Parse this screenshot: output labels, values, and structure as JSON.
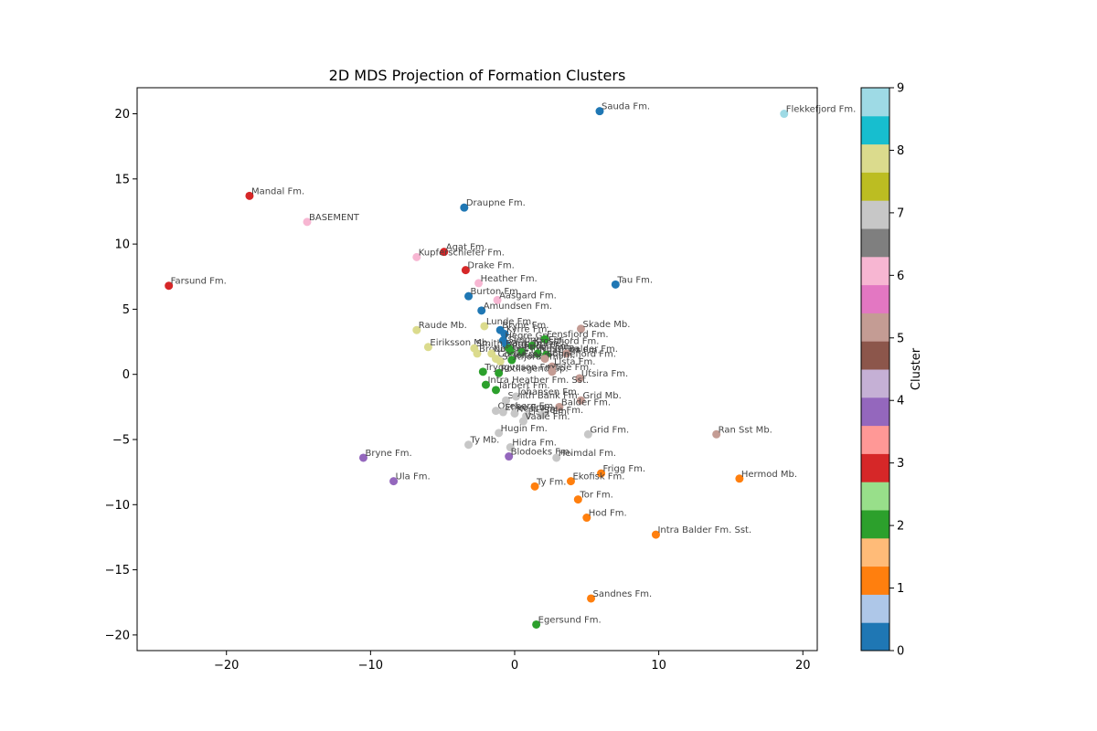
{
  "chart_data": {
    "type": "scatter",
    "title": "2D MDS Projection of Formation Clusters",
    "xlabel": "",
    "ylabel": "",
    "xlim": [
      -26.2,
      21
    ],
    "ylim": [
      -21.2,
      22
    ],
    "xticks": [
      -20,
      -10,
      0,
      10,
      20
    ],
    "yticks": [
      -20,
      -15,
      -10,
      -5,
      0,
      5,
      10,
      15,
      20
    ],
    "grid": false,
    "colorbar": {
      "label": "Cluster",
      "range": [
        0,
        9
      ],
      "ticks": [
        0,
        1,
        2,
        3,
        4,
        5,
        6,
        7,
        8,
        9
      ],
      "colors": [
        "#1f77b4",
        "#aec7e8",
        "#ff7f0e",
        "#ffbb78",
        "#2ca02c",
        "#98df8a",
        "#d62728",
        "#ff9896",
        "#9467bd",
        "#c5b0d5",
        "#8c564b",
        "#c49c94",
        "#e377c2",
        "#f7b6d2",
        "#7f7f7f",
        "#c7c7c7",
        "#bcbd22",
        "#dbdb8d",
        "#17becf",
        "#9edae5"
      ]
    },
    "cluster_colors": {
      "0": "#1f77b4",
      "1": "#ff7f0e",
      "2": "#2ca02c",
      "3": "#d62728",
      "4": "#9467bd",
      "5": "#c49c94",
      "6": "#f7b6d2",
      "7": "#c7c7c7",
      "8": "#dbdb8d",
      "9": "#9edae5"
    },
    "points": [
      {
        "label": "Sauda Fm.",
        "x": 5.9,
        "y": 20.2,
        "cluster": 0
      },
      {
        "label": "Flekkefjord Fm.",
        "x": 18.7,
        "y": 20.0,
        "cluster": 9
      },
      {
        "label": "Mandal Fm.",
        "x": -18.4,
        "y": 13.7,
        "cluster": 3
      },
      {
        "label": "Draupne Fm.",
        "x": -3.5,
        "y": 12.8,
        "cluster": 0
      },
      {
        "label": "BASEMENT",
        "x": -14.4,
        "y": 11.7,
        "cluster": 6
      },
      {
        "label": "Agat Fm.",
        "x": -4.9,
        "y": 9.4,
        "cluster": 3
      },
      {
        "label": "Kupferschiefer Fm.",
        "x": -6.8,
        "y": 9.0,
        "cluster": 6
      },
      {
        "label": "Drake Fm.",
        "x": -3.4,
        "y": 8.0,
        "cluster": 3
      },
      {
        "label": "Heather Fm.",
        "x": -2.5,
        "y": 7.0,
        "cluster": 6
      },
      {
        "label": "Farsund Fm.",
        "x": -24.0,
        "y": 6.8,
        "cluster": 3
      },
      {
        "label": "Tau Fm.",
        "x": 7.0,
        "y": 6.9,
        "cluster": 0
      },
      {
        "label": "Burton Fm.",
        "x": -3.2,
        "y": 6.0,
        "cluster": 0
      },
      {
        "label": "Aasgard Fm.",
        "x": -1.2,
        "y": 5.7,
        "cluster": 6
      },
      {
        "label": "Amundsen Fm.",
        "x": -2.3,
        "y": 4.9,
        "cluster": 0
      },
      {
        "label": "Raude Mb.",
        "x": -6.8,
        "y": 3.4,
        "cluster": 8
      },
      {
        "label": "Lunde Fm.",
        "x": -2.1,
        "y": 3.7,
        "cluster": 8
      },
      {
        "label": "Bryne Fm.",
        "x": -1.0,
        "y": 3.4,
        "cluster": 0
      },
      {
        "label": "Skade Mb.",
        "x": 4.6,
        "y": 3.5,
        "cluster": 5
      },
      {
        "label": "Kyrre Fm.",
        "x": -0.7,
        "y": 3.1,
        "cluster": 0
      },
      {
        "label": "Hegre Gp.",
        "x": -0.8,
        "y": 2.6,
        "cluster": 0
      },
      {
        "label": "Sleipner Fm.",
        "x": -0.6,
        "y": 2.3,
        "cluster": 0
      },
      {
        "label": "Ormen Fm.",
        "x": -0.4,
        "y": 2.0,
        "cluster": 2
      },
      {
        "label": "Fensfjord Fm.",
        "x": 2.1,
        "y": 2.7,
        "cluster": 2
      },
      {
        "label": "Eiriksson Mb.",
        "x": -6.0,
        "y": 2.1,
        "cluster": 8
      },
      {
        "label": "Smith Bank Fm.",
        "x": -2.8,
        "y": 2.0,
        "cluster": 8
      },
      {
        "label": "Krossfjord Fm.",
        "x": 1.2,
        "y": 2.2,
        "cluster": 2
      },
      {
        "label": "Broom Fm.",
        "x": -2.6,
        "y": 1.6,
        "cluster": 8
      },
      {
        "label": "Nansen Fm.",
        "x": -1.6,
        "y": 1.6,
        "cluster": 8
      },
      {
        "label": "Rannoch Fm.",
        "x": -0.3,
        "y": 1.8,
        "cluster": 2
      },
      {
        "label": "Etive Fm.",
        "x": 0.5,
        "y": 1.7,
        "cluster": 2
      },
      {
        "label": "Ness Fm.",
        "x": 1.6,
        "y": 1.6,
        "cluster": 2
      },
      {
        "label": "Tarbert Fm.",
        "x": 2.2,
        "y": 1.5,
        "cluster": 2
      },
      {
        "label": "Balder Fm.",
        "x": 3.6,
        "y": 1.6,
        "cluster": 5
      },
      {
        "label": "Cook Fm.",
        "x": -1.3,
        "y": 1.2,
        "cluster": 8
      },
      {
        "label": "Statfjord Fm.",
        "x": -1.0,
        "y": 1.0,
        "cluster": 8
      },
      {
        "label": "Johansen Fm.",
        "x": -0.2,
        "y": 1.1,
        "cluster": 2
      },
      {
        "label": "Sognefjord Fm.",
        "x": 2.1,
        "y": 1.2,
        "cluster": 5
      },
      {
        "label": "Lista Fm.",
        "x": 2.6,
        "y": 0.6,
        "cluster": 5
      },
      {
        "label": "Tryggvason Fm.",
        "x": -2.2,
        "y": 0.2,
        "cluster": 2
      },
      {
        "label": "Rotliegend Gp.",
        "x": -1.1,
        "y": 0.1,
        "cluster": 2
      },
      {
        "label": "Tele Fm.",
        "x": 2.6,
        "y": 0.2,
        "cluster": 5
      },
      {
        "label": "Utsira Fm.",
        "x": 4.5,
        "y": -0.3,
        "cluster": 5
      },
      {
        "label": "Intra Heather Fm. Sst.",
        "x": -2.0,
        "y": -0.8,
        "cluster": 2
      },
      {
        "label": "Tarbert Fm.",
        "x": -1.3,
        "y": -1.2,
        "cluster": 2
      },
      {
        "label": "Smith Bank Fm.",
        "x": -0.6,
        "y": -2.0,
        "cluster": 7
      },
      {
        "label": "Johansen Fm.",
        "x": 0.1,
        "y": -1.7,
        "cluster": 7
      },
      {
        "label": "Grid Mb.",
        "x": 4.6,
        "y": -2.0,
        "cluster": 5
      },
      {
        "label": "Balder Fm.",
        "x": 3.1,
        "y": -2.5,
        "cluster": 5
      },
      {
        "label": "Oseberg Fm.",
        "x": -1.3,
        "y": -2.8,
        "cluster": 7
      },
      {
        "label": "Etive Fm.",
        "x": -0.8,
        "y": -2.9,
        "cluster": 7
      },
      {
        "label": "Ness Fm.",
        "x": 0.0,
        "y": -3.0,
        "cluster": 7
      },
      {
        "label": "Lista Fm.",
        "x": 0.8,
        "y": -3.2,
        "cluster": 7
      },
      {
        "label": "Sele Fm.",
        "x": 1.9,
        "y": -3.1,
        "cluster": 7
      },
      {
        "label": "Vaale Fm.",
        "x": 0.6,
        "y": -3.6,
        "cluster": 7
      },
      {
        "label": "Hugin Fm.",
        "x": -1.1,
        "y": -4.5,
        "cluster": 7
      },
      {
        "label": "Grid Fm.",
        "x": 5.1,
        "y": -4.6,
        "cluster": 7
      },
      {
        "label": "Ran Sst Mb.",
        "x": 14.0,
        "y": -4.6,
        "cluster": 5
      },
      {
        "label": "Ty Mb.",
        "x": -3.2,
        "y": -5.4,
        "cluster": 7
      },
      {
        "label": "Hidra Fm.",
        "x": -0.3,
        "y": -5.6,
        "cluster": 7
      },
      {
        "label": "Blodoeks Fm.",
        "x": -0.4,
        "y": -6.3,
        "cluster": 4
      },
      {
        "label": "Heimdal Fm.",
        "x": 2.9,
        "y": -6.4,
        "cluster": 7
      },
      {
        "label": "Bryne Fm.",
        "x": -10.5,
        "y": -6.4,
        "cluster": 4
      },
      {
        "label": "Ula Fm.",
        "x": -8.4,
        "y": -8.2,
        "cluster": 4
      },
      {
        "label": "Frigg Fm.",
        "x": 6.0,
        "y": -7.6,
        "cluster": 1
      },
      {
        "label": "Hermod Mb.",
        "x": 15.6,
        "y": -8.0,
        "cluster": 1
      },
      {
        "label": "Ekofisk Fm.",
        "x": 3.9,
        "y": -8.2,
        "cluster": 1
      },
      {
        "label": "Ty Fm.",
        "x": 1.4,
        "y": -8.6,
        "cluster": 1
      },
      {
        "label": "Tor Fm.",
        "x": 4.4,
        "y": -9.6,
        "cluster": 1
      },
      {
        "label": "Hod Fm.",
        "x": 5.0,
        "y": -11.0,
        "cluster": 1
      },
      {
        "label": "Intra Balder Fm. Sst.",
        "x": 9.8,
        "y": -12.3,
        "cluster": 1
      },
      {
        "label": "Sandnes Fm.",
        "x": 5.3,
        "y": -17.2,
        "cluster": 1
      },
      {
        "label": "Egersund Fm.",
        "x": 1.5,
        "y": -19.2,
        "cluster": 2
      }
    ]
  }
}
